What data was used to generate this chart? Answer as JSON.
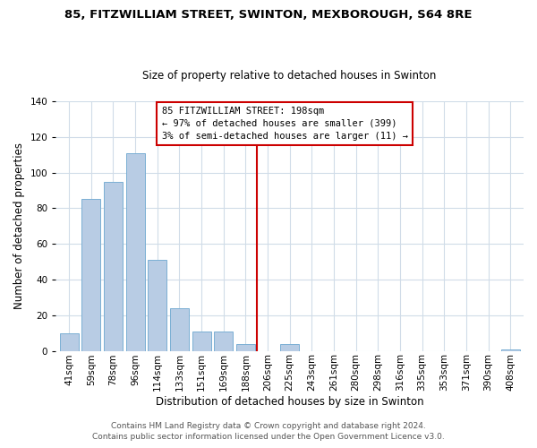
{
  "title": "85, FITZWILLIAM STREET, SWINTON, MEXBOROUGH, S64 8RE",
  "subtitle": "Size of property relative to detached houses in Swinton",
  "xlabel": "Distribution of detached houses by size in Swinton",
  "ylabel": "Number of detached properties",
  "bar_labels": [
    "41sqm",
    "59sqm",
    "78sqm",
    "96sqm",
    "114sqm",
    "133sqm",
    "151sqm",
    "169sqm",
    "188sqm",
    "206sqm",
    "225sqm",
    "243sqm",
    "261sqm",
    "280sqm",
    "298sqm",
    "316sqm",
    "335sqm",
    "353sqm",
    "371sqm",
    "390sqm",
    "408sqm"
  ],
  "bar_values": [
    10,
    85,
    95,
    111,
    51,
    24,
    11,
    11,
    4,
    0,
    4,
    0,
    0,
    0,
    0,
    0,
    0,
    0,
    0,
    0,
    1
  ],
  "bar_color": "#b8cce4",
  "bar_edge_color": "#7bafd4",
  "vline_x_index": 8.5,
  "annotation_line1": "85 FITZWILLIAM STREET: 198sqm",
  "annotation_line2": "← 97% of detached houses are smaller (399)",
  "annotation_line3": "3% of semi-detached houses are larger (11) →",
  "vline_color": "#cc0000",
  "box_edge_color": "#cc0000",
  "ylim": [
    0,
    140
  ],
  "yticks": [
    0,
    20,
    40,
    60,
    80,
    100,
    120,
    140
  ],
  "footer1": "Contains HM Land Registry data © Crown copyright and database right 2024.",
  "footer2": "Contains public sector information licensed under the Open Government Licence v3.0.",
  "bg_color": "#ffffff",
  "grid_color": "#d0dce8",
  "title_fontsize": 9.5,
  "subtitle_fontsize": 8.5,
  "axis_label_fontsize": 8.5,
  "tick_fontsize": 7.5,
  "footer_fontsize": 6.5
}
